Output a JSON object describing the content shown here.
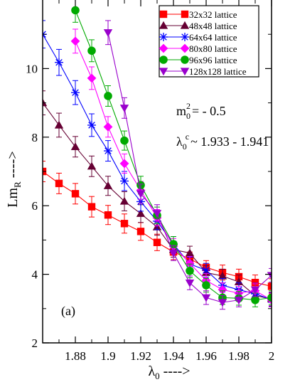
{
  "chart_data": {
    "type": "line",
    "xlabel_main": "λ",
    "xlabel_sub": "0",
    "xlabel_tail": " ---->",
    "ylabel_main": "Lm",
    "ylabel_sub": "R",
    "ylabel_tail": " ---->",
    "xlim": [
      1.86,
      2.0
    ],
    "ylim": [
      2,
      12
    ],
    "x_ticks": [
      1.88,
      1.9,
      1.92,
      1.94,
      1.96,
      1.98,
      2
    ],
    "x_tick_labels": [
      "1.88",
      "1.9",
      "1.92",
      "1.94",
      "1.96",
      "1.98",
      "2"
    ],
    "y_ticks": [
      2,
      4,
      6,
      8,
      10
    ],
    "y_tick_labels": [
      "2",
      "4",
      "6",
      "8",
      "10"
    ],
    "grid": false,
    "legend_position": "top-right",
    "annotations": {
      "panel_label": "(a)",
      "mass_main": "m",
      "mass_sub": "0",
      "mass_sup": "2",
      "mass_value": "= - 0.5",
      "lambda_main": "λ",
      "lambda_sub": "0",
      "lambda_sup": "c",
      "lambda_value": "~ 1.933 - 1.941"
    },
    "series": [
      {
        "name": "32x32 lattice",
        "color": "#ff0000",
        "marker": "square",
        "x": [
          1.86,
          1.87,
          1.88,
          1.89,
          1.9,
          1.91,
          1.92,
          1.93,
          1.94,
          1.95,
          1.96,
          1.97,
          1.98,
          1.99,
          2.0
        ],
        "y": [
          7.0,
          6.65,
          6.35,
          5.97,
          5.73,
          5.48,
          5.25,
          4.93,
          4.65,
          4.45,
          4.2,
          4.05,
          3.93,
          3.76,
          3.65
        ],
        "err": [
          0.3,
          0.3,
          0.3,
          0.3,
          0.28,
          0.28,
          0.26,
          0.24,
          0.22,
          0.2,
          0.2,
          0.22,
          0.22,
          0.22,
          0.22
        ]
      },
      {
        "name": "48x48 lattice",
        "color": "#660033",
        "marker": "triangle-up",
        "x": [
          1.86,
          1.87,
          1.88,
          1.89,
          1.9,
          1.91,
          1.92,
          1.93,
          1.94,
          1.95,
          1.96,
          1.97,
          1.98,
          1.99,
          2.0
        ],
        "y": [
          9.0,
          8.35,
          7.72,
          7.15,
          6.58,
          6.13,
          5.77,
          5.38,
          4.72,
          4.62,
          4.05,
          3.95,
          3.78,
          3.38,
          3.28
        ],
        "err": [
          0.35,
          0.35,
          0.3,
          0.3,
          0.28,
          0.28,
          0.26,
          0.24,
          0.22,
          0.2,
          0.2,
          0.2,
          0.2,
          0.2,
          0.2
        ]
      },
      {
        "name": "64x64 lattice",
        "color": "#0000ff",
        "marker": "asterisk",
        "x": [
          1.86,
          1.87,
          1.88,
          1.89,
          1.9,
          1.91,
          1.92,
          1.93,
          1.94,
          1.95,
          1.96,
          1.97,
          1.98,
          1.99,
          2.0
        ],
        "y": [
          11.0,
          10.18,
          9.3,
          8.35,
          7.6,
          6.72,
          6.12,
          5.55,
          4.88,
          4.3,
          4.12,
          3.68,
          3.55,
          3.43,
          3.26
        ],
        "err": [
          0.4,
          0.38,
          0.35,
          0.33,
          0.3,
          0.28,
          0.28,
          0.25,
          0.22,
          0.2,
          0.2,
          0.2,
          0.2,
          0.2,
          0.2
        ]
      },
      {
        "name": "80x80 lattice",
        "color": "#ff00ff",
        "marker": "diamond",
        "x": [
          1.88,
          1.89,
          1.9,
          1.91,
          1.92,
          1.93,
          1.94,
          1.95,
          1.96,
          1.97,
          1.98,
          1.99,
          2.0
        ],
        "y": [
          10.8,
          9.72,
          8.3,
          7.23,
          6.45,
          5.65,
          4.82,
          4.32,
          3.82,
          3.55,
          3.45,
          3.52,
          3.25
        ],
        "err": [
          0.35,
          0.33,
          0.3,
          0.28,
          0.26,
          0.24,
          0.22,
          0.2,
          0.2,
          0.2,
          0.2,
          0.2,
          0.2
        ]
      },
      {
        "name": "96x96 lattice",
        "color": "#00aa00",
        "marker": "circle",
        "x": [
          1.88,
          1.89,
          1.9,
          1.91,
          1.92,
          1.93,
          1.94,
          1.95,
          1.96,
          1.97,
          1.98,
          1.99,
          2.0
        ],
        "y": [
          11.7,
          10.52,
          9.2,
          7.9,
          6.6,
          5.72,
          4.88,
          4.1,
          3.68,
          3.32,
          3.3,
          3.25,
          3.32
        ],
        "err": [
          0.35,
          0.32,
          0.3,
          0.28,
          0.26,
          0.24,
          0.22,
          0.2,
          0.2,
          0.2,
          0.2,
          0.2,
          0.2
        ]
      },
      {
        "name": "128x128 lattice",
        "color": "#9900cc",
        "marker": "triangle-down",
        "x": [
          1.9,
          1.91,
          1.92,
          1.93,
          1.94,
          1.95,
          1.96,
          1.97,
          1.98,
          1.99,
          2.0
        ],
        "y": [
          11.05,
          8.85,
          6.35,
          5.78,
          4.62,
          3.75,
          3.32,
          3.18,
          3.25,
          3.55,
          3.97
        ],
        "err": [
          0.35,
          0.3,
          0.28,
          0.25,
          0.22,
          0.2,
          0.2,
          0.2,
          0.2,
          0.2,
          0.2
        ]
      }
    ]
  }
}
